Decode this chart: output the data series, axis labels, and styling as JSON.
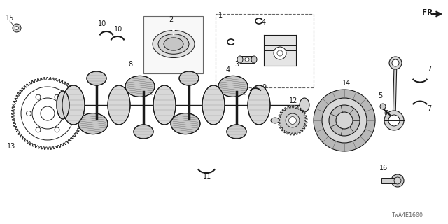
{
  "bg_color": "#ffffff",
  "ec": "#1a1a1a",
  "gray_light": "#cccccc",
  "gray_mid": "#999999",
  "gray_dark": "#666666",
  "footer": "TWA4E1600",
  "lw": 0.7
}
